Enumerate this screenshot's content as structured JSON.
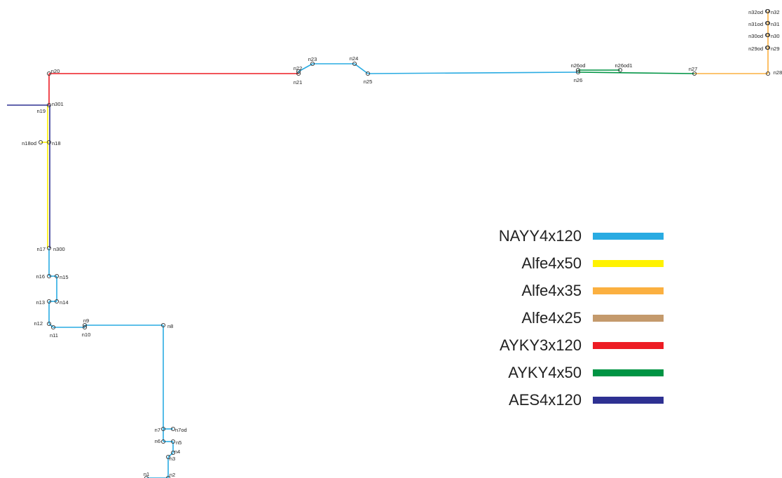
{
  "legend": [
    {
      "label": "NAYY4x120",
      "color": "#29ABE2"
    },
    {
      "label": "Alfe4x50",
      "color": "#FFF200"
    },
    {
      "label": "Alfe4x35",
      "color": "#FBB040"
    },
    {
      "label": "Alfe4x25",
      "color": "#C49A6C"
    },
    {
      "label": "AYKY3x120",
      "color": "#ED1C24"
    },
    {
      "label": "AYKY4x50",
      "color": "#009444"
    },
    {
      "label": "AES4x120",
      "color": "#2E3192"
    }
  ],
  "nodes": {
    "n1": "n1",
    "n2": "n2",
    "n3": "n3",
    "n4": "n4",
    "n5": "n5",
    "n6": "n6",
    "n7": "n7",
    "n7od": "n7od",
    "n8": "n8",
    "n9": "n9",
    "n10": "n10",
    "n11": "n11",
    "n12": "n12",
    "n13": "n13",
    "n14": "n14",
    "n15": "n15",
    "n16": "n16",
    "n17": "n17",
    "n300": "n300",
    "n18": "n18",
    "n18od": "n18od",
    "n19": "n19",
    "n301": "n301",
    "n20": "n20",
    "n21": "n21",
    "n22": "n22",
    "n23": "n23",
    "n24": "n24",
    "n25": "n25",
    "n26": "n26",
    "n26od": "n26od",
    "n26od1": "n26od1",
    "n27": "n27",
    "n28": "n28",
    "n29": "n29",
    "n29od": "n29od",
    "n30": "n30",
    "n30od": "n30od",
    "n31": "n31",
    "n31od": "n31od",
    "n32": "n32",
    "n32od": "n32od"
  }
}
